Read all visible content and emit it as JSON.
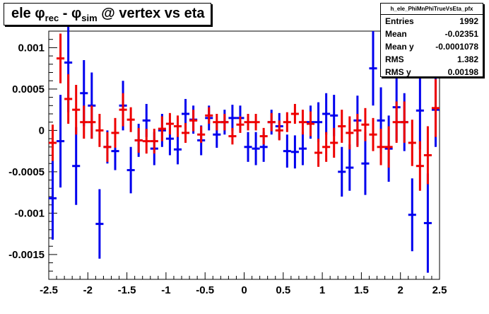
{
  "title": {
    "main": "ele ",
    "phi_rec": "φ",
    "sub_rec": "rec",
    "minus": " - ",
    "phi_sim": "φ",
    "sub_sim": "sim",
    "rest": " @ vertex vs eta"
  },
  "stats": {
    "name": "h_ele_PhiMnPhiTrueVsEta_pfx",
    "rows": [
      {
        "label": "Entries",
        "value": "1992"
      },
      {
        "label": "Mean",
        "value": "-0.02351"
      },
      {
        "label": "Mean y",
        "value": "-0.0001078"
      },
      {
        "label": "RMS",
        "value": "1.382"
      },
      {
        "label": "RMS y",
        "value": "0.00198"
      }
    ]
  },
  "chart_data": {
    "type": "scatter",
    "xlim": [
      -2.5,
      2.5
    ],
    "ylim": [
      -0.0018,
      0.0012
    ],
    "x_ticks": [
      -2.5,
      -2,
      -1.5,
      -1,
      -0.5,
      0,
      0.5,
      1,
      1.5,
      2,
      2.5
    ],
    "x_tick_labels": [
      "-2.5",
      "-2",
      "-1.5",
      "-1",
      "-0.5",
      "0",
      "0.5",
      "1",
      "1.5",
      "2",
      "2.5"
    ],
    "y_ticks": [
      -0.0015,
      -0.001,
      -0.0005,
      0,
      0.0005,
      0.001
    ],
    "y_tick_labels": [
      "-0.0015",
      "-0.001",
      "-0.0005",
      "0",
      "0.0005",
      "0.001"
    ],
    "bin_half_width": 0.05,
    "series": [
      {
        "color": "#0000ee",
        "points": [
          {
            "x": -2.45,
            "y": -0.00082,
            "err": 0.0005
          },
          {
            "x": -2.35,
            "y": -0.00013,
            "err": 0.00056
          },
          {
            "x": -2.25,
            "y": 0.00082,
            "err": 0.0006
          },
          {
            "x": -2.15,
            "y": -0.00043,
            "err": 0.00047
          },
          {
            "x": -2.05,
            "y": 0.00045,
            "err": 0.0004
          },
          {
            "x": -1.95,
            "y": 0.0003,
            "err": 0.0004
          },
          {
            "x": -1.85,
            "y": -0.00113,
            "err": 0.00042
          },
          {
            "x": -1.75,
            "y": -0.0002,
            "err": 0.0002
          },
          {
            "x": -1.65,
            "y": -0.00025,
            "err": 0.00023
          },
          {
            "x": -1.55,
            "y": 0.0003,
            "err": 0.0003
          },
          {
            "x": -1.45,
            "y": -0.00048,
            "err": 0.00028
          },
          {
            "x": -1.35,
            "y": -0.00012,
            "err": 0.0002
          },
          {
            "x": -1.25,
            "y": 0.00012,
            "err": 0.0002
          },
          {
            "x": -1.15,
            "y": -0.00022,
            "err": 0.0002
          },
          {
            "x": -1.05,
            "y": 0.0,
            "err": 0.0002
          },
          {
            "x": -0.95,
            "y": -0.0001,
            "err": 0.0002
          },
          {
            "x": -0.85,
            "y": -0.00023,
            "err": 0.00018
          },
          {
            "x": -0.75,
            "y": 0.0002,
            "err": 0.00018
          },
          {
            "x": -0.65,
            "y": 0.00013,
            "err": 0.00017
          },
          {
            "x": -0.55,
            "y": -0.00012,
            "err": 0.00018
          },
          {
            "x": -0.45,
            "y": 0.00015,
            "err": 0.00015
          },
          {
            "x": -0.35,
            "y": -5e-05,
            "err": 0.00016
          },
          {
            "x": -0.25,
            "y": 0.0001,
            "err": 0.00015
          },
          {
            "x": -0.15,
            "y": 0.00015,
            "err": 0.00016
          },
          {
            "x": -0.05,
            "y": 0.00015,
            "err": 0.00015
          },
          {
            "x": 0.05,
            "y": -0.0002,
            "err": 0.00018
          },
          {
            "x": 0.15,
            "y": -0.00022,
            "err": 0.0002
          },
          {
            "x": 0.25,
            "y": -0.0002,
            "err": 0.00018
          },
          {
            "x": 0.35,
            "y": 0.0001,
            "err": 0.00015
          },
          {
            "x": 0.45,
            "y": 5e-05,
            "err": 0.00016
          },
          {
            "x": 0.55,
            "y": -0.00025,
            "err": 0.0002
          },
          {
            "x": 0.65,
            "y": -0.00026,
            "err": 0.0002
          },
          {
            "x": 0.75,
            "y": -0.00022,
            "err": 0.0002
          },
          {
            "x": 0.85,
            "y": 0.0001,
            "err": 0.0002
          },
          {
            "x": 0.95,
            "y": 0.0001,
            "err": 0.00024
          },
          {
            "x": 1.05,
            "y": 0.0002,
            "err": 0.00025
          },
          {
            "x": 1.15,
            "y": 0.00018,
            "err": 0.00025
          },
          {
            "x": 1.25,
            "y": -0.0005,
            "err": 0.0003
          },
          {
            "x": 1.35,
            "y": -0.00045,
            "err": 0.00028
          },
          {
            "x": 1.45,
            "y": 0.00012,
            "err": 0.0003
          },
          {
            "x": 1.55,
            "y": -0.0004,
            "err": 0.00038
          },
          {
            "x": 1.65,
            "y": 0.00075,
            "err": 0.00045
          },
          {
            "x": 1.75,
            "y": 0.00012,
            "err": 0.0004
          },
          {
            "x": 1.85,
            "y": -0.00022,
            "err": 0.0004
          },
          {
            "x": 1.95,
            "y": 0.00028,
            "err": 0.0004
          },
          {
            "x": 2.05,
            "y": 0.0001,
            "err": 0.00035
          },
          {
            "x": 2.15,
            "y": -0.00102,
            "err": 0.00044
          },
          {
            "x": 2.25,
            "y": 0.00024,
            "err": 0.00047
          },
          {
            "x": 2.35,
            "y": -0.00112,
            "err": 0.0006
          },
          {
            "x": 2.45,
            "y": 0.00025,
            "err": 0.00045
          }
        ]
      },
      {
        "color": "#ee0000",
        "points": [
          {
            "x": -2.45,
            "y": -0.00015,
            "err": 0.00022
          },
          {
            "x": -2.35,
            "y": 0.00087,
            "err": 0.0003
          },
          {
            "x": -2.25,
            "y": 0.00038,
            "err": 0.0003
          },
          {
            "x": -2.15,
            "y": 0.00025,
            "err": 0.0003
          },
          {
            "x": -2.05,
            "y": 0.0001,
            "err": 0.0002
          },
          {
            "x": -1.95,
            "y": 0.0001,
            "err": 0.0002
          },
          {
            "x": -1.85,
            "y": 0.0,
            "err": 0.0002
          },
          {
            "x": -1.75,
            "y": -0.0002,
            "err": 0.00018
          },
          {
            "x": -1.65,
            "y": -3e-05,
            "err": 0.00018
          },
          {
            "x": -1.55,
            "y": 0.00025,
            "err": 0.0002
          },
          {
            "x": -1.45,
            "y": 0.00013,
            "err": 0.00015
          },
          {
            "x": -1.35,
            "y": -0.00012,
            "err": 0.00015
          },
          {
            "x": -1.25,
            "y": -0.00013,
            "err": 0.00015
          },
          {
            "x": -1.15,
            "y": -0.00013,
            "err": 0.00015
          },
          {
            "x": -1.05,
            "y": 2e-05,
            "err": 0.00015
          },
          {
            "x": -0.95,
            "y": 8e-05,
            "err": 0.00013
          },
          {
            "x": -0.85,
            "y": 5e-05,
            "err": 0.00013
          },
          {
            "x": -0.75,
            "y": -3e-05,
            "err": 0.00012
          },
          {
            "x": -0.65,
            "y": 0.00012,
            "err": 0.00013
          },
          {
            "x": -0.55,
            "y": -5e-05,
            "err": 0.0001
          },
          {
            "x": -0.45,
            "y": 0.00018,
            "err": 0.0001
          },
          {
            "x": -0.35,
            "y": 0.0001,
            "err": 0.0001
          },
          {
            "x": -0.25,
            "y": 0.0001,
            "err": 0.0001
          },
          {
            "x": -0.15,
            "y": -7e-05,
            "err": 0.0001
          },
          {
            "x": -0.05,
            "y": 7e-05,
            "err": 0.0001
          },
          {
            "x": 0.05,
            "y": 0.0001,
            "err": 0.0001
          },
          {
            "x": 0.15,
            "y": 0.0001,
            "err": 0.0001
          },
          {
            "x": 0.25,
            "y": -7e-05,
            "err": 0.0001
          },
          {
            "x": 0.35,
            "y": 0.0001,
            "err": 0.00011
          },
          {
            "x": 0.45,
            "y": 0.0,
            "err": 0.00012
          },
          {
            "x": 0.55,
            "y": 0.0001,
            "err": 0.00012
          },
          {
            "x": 0.65,
            "y": 0.0002,
            "err": 0.00012
          },
          {
            "x": 0.75,
            "y": 0.0001,
            "err": 0.00015
          },
          {
            "x": 0.85,
            "y": 8e-05,
            "err": 0.00015
          },
          {
            "x": 0.95,
            "y": -0.00027,
            "err": 0.00017
          },
          {
            "x": 1.05,
            "y": -0.0002,
            "err": 0.00018
          },
          {
            "x": 1.15,
            "y": -0.00015,
            "err": 0.00018
          },
          {
            "x": 1.25,
            "y": 5e-05,
            "err": 0.0002
          },
          {
            "x": 1.35,
            "y": -3e-05,
            "err": 0.0002
          },
          {
            "x": 1.45,
            "y": 0.0,
            "err": 0.0002
          },
          {
            "x": 1.55,
            "y": 7e-05,
            "err": 0.0002
          },
          {
            "x": 1.65,
            "y": -5e-05,
            "err": 0.0002
          },
          {
            "x": 1.75,
            "y": -0.0002,
            "err": 0.00022
          },
          {
            "x": 1.85,
            "y": -0.0002,
            "err": 0.00025
          },
          {
            "x": 1.95,
            "y": 0.0001,
            "err": 0.00025
          },
          {
            "x": 2.05,
            "y": 0.0001,
            "err": 0.00025
          },
          {
            "x": 2.15,
            "y": -0.00015,
            "err": 0.00028
          },
          {
            "x": 2.25,
            "y": -0.00043,
            "err": 0.0003
          },
          {
            "x": 2.35,
            "y": -0.0003,
            "err": 0.00035
          },
          {
            "x": 2.45,
            "y": 0.00027,
            "err": 0.00035
          }
        ]
      }
    ]
  }
}
